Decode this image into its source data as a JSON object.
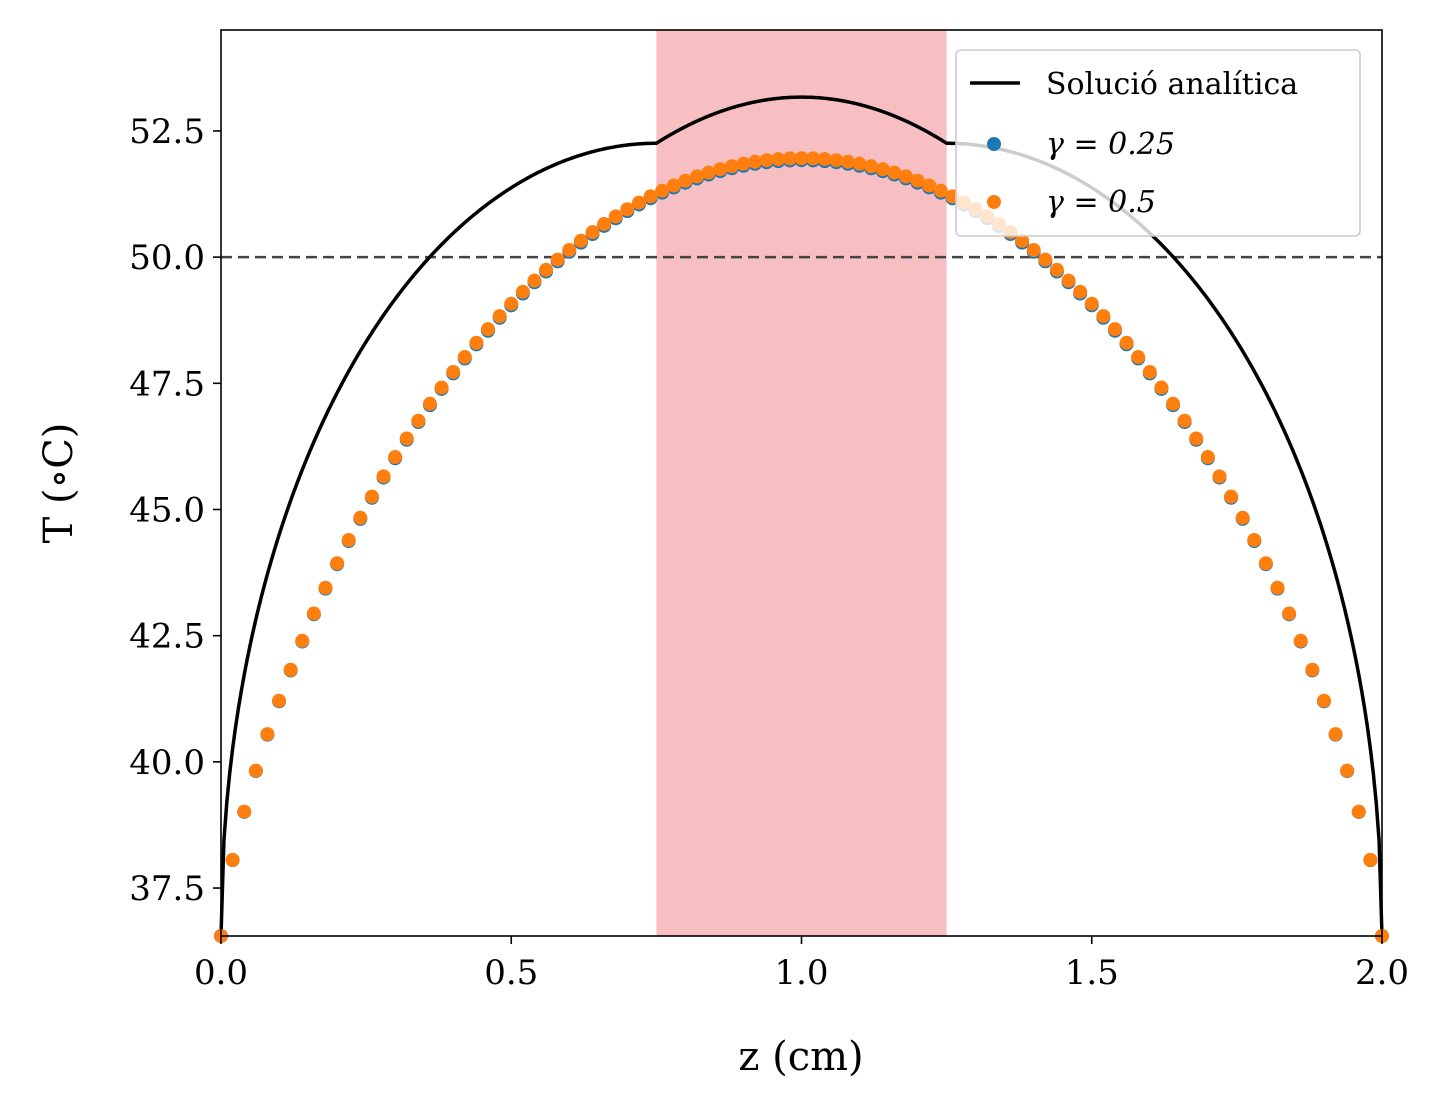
{
  "chart_data": {
    "type": "scatter",
    "xlabel": "z (cm)",
    "ylabel": "T (∘C)",
    "xlim": [
      0.0,
      2.0
    ],
    "ylim": [
      36.55,
      54.5
    ],
    "x_ticks": [
      "0.0",
      "0.5",
      "1.0",
      "1.5",
      "2.0"
    ],
    "x_tick_values": [
      0.0,
      0.5,
      1.0,
      1.5,
      2.0
    ],
    "y_ticks": [
      "37.5",
      "40.0",
      "42.5",
      "45.0",
      "47.5",
      "50.0",
      "52.5"
    ],
    "y_tick_values": [
      37.5,
      40.0,
      42.5,
      45.0,
      47.5,
      50.0,
      52.5
    ],
    "grid": false,
    "legend_position": "top-right",
    "shaded_region": {
      "x_start": 0.75,
      "x_end": 1.25,
      "color": "#f7bfc1"
    },
    "reference_line": {
      "y": 50.0,
      "style": "dashed",
      "color": "#444444"
    },
    "series": [
      {
        "name": "Solució analítica",
        "kind": "line",
        "color": "#000000",
        "base": 36.55,
        "peak": 53.17,
        "breakpoints": [
          0.75,
          1.25
        ],
        "outer_shape_exponent": 0.49
      },
      {
        "name": "γ = 0.25",
        "kind": "scatter",
        "color": "#1f77b4",
        "x_start": 0.0,
        "x_end": 2.0,
        "x_step": 0.02,
        "base": 36.55,
        "peak": 51.92,
        "shape_exponent": 1.5
      },
      {
        "name": "γ = 0.5",
        "kind": "scatter",
        "color": "#ff7f0e",
        "x_start": 0.0,
        "x_end": 2.0,
        "x_step": 0.02,
        "base": 36.55,
        "peak": 51.96,
        "shape_exponent": 1.5
      }
    ]
  }
}
